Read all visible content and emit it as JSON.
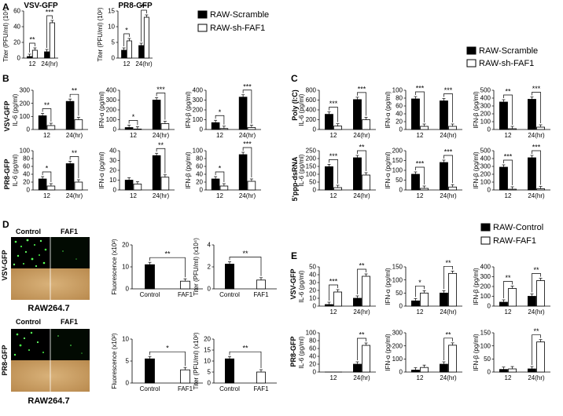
{
  "panel_labels": {
    "A": "A",
    "B": "B",
    "C": "C",
    "D": "D",
    "E": "E"
  },
  "legend1": {
    "filled": "RAW-Scramble",
    "open": "RAW-sh-FAF1"
  },
  "legend2": {
    "filled": "RAW-Control",
    "open": "RAW-FAF1"
  },
  "virus": {
    "vsv": "VSV-GFP",
    "pr8": "PR8-GFP"
  },
  "stim": {
    "polyic": "Poly (I:C)",
    "ppp": "5'ppp-dsRNA"
  },
  "d_images": {
    "control": "Control",
    "faf1": "FAF1",
    "cell_line": "RAW264.7"
  },
  "chart_data": [
    {
      "id": "A1",
      "type": "bar",
      "title": "VSV-GFP",
      "ylabel": "Titer (PFU/ml) (10⁴)",
      "categories": [
        "12",
        "24(hr)"
      ],
      "ylim": [
        0,
        60
      ],
      "yticks": [
        0,
        20,
        40,
        60
      ],
      "series": [
        {
          "name": "RAW-Scramble",
          "values": [
            2,
            8
          ]
        },
        {
          "name": "RAW-sh-FAF1",
          "values": [
            10,
            45
          ]
        }
      ],
      "sig": [
        "**",
        "***"
      ]
    },
    {
      "id": "A2",
      "type": "bar",
      "title": "PR8-GFP",
      "ylabel": "Titer (PFU/ml) (10²)",
      "categories": [
        "12",
        "24(hr)"
      ],
      "ylim": [
        0,
        15
      ],
      "yticks": [
        0,
        5,
        10,
        15
      ],
      "series": [
        {
          "name": "RAW-Scramble",
          "values": [
            2.5,
            4
          ]
        },
        {
          "name": "RAW-sh-FAF1",
          "values": [
            5.5,
            13
          ]
        }
      ],
      "sig": [
        "*",
        "**"
      ]
    },
    {
      "id": "B1",
      "type": "bar",
      "ylabel": "IL-6 (pg/ml)",
      "categories": [
        "12",
        "24(hr)"
      ],
      "ylim": [
        0,
        300
      ],
      "yticks": [
        0,
        100,
        200,
        300
      ],
      "series": [
        {
          "name": "RAW-Scramble",
          "values": [
            105,
            215
          ]
        },
        {
          "name": "RAW-sh-FAF1",
          "values": [
            30,
            75
          ]
        }
      ],
      "sig": [
        "**",
        "**"
      ]
    },
    {
      "id": "B2",
      "type": "bar",
      "ylabel": "IFN-α (pg/ml)",
      "categories": [
        "12",
        "24(hr)"
      ],
      "ylim": [
        0,
        400
      ],
      "yticks": [
        0,
        100,
        200,
        300,
        400
      ],
      "series": [
        {
          "name": "RAW-Scramble",
          "values": [
            20,
            300
          ]
        },
        {
          "name": "RAW-sh-FAF1",
          "values": [
            5,
            60
          ]
        }
      ],
      "sig": [
        "*",
        "***"
      ]
    },
    {
      "id": "B3",
      "type": "bar",
      "ylabel": "IFN-β (pg/ml)",
      "categories": [
        "12",
        "24(hr)"
      ],
      "ylim": [
        0,
        400
      ],
      "yticks": [
        0,
        100,
        200,
        300,
        400
      ],
      "series": [
        {
          "name": "RAW-Scramble",
          "values": [
            70,
            330
          ]
        },
        {
          "name": "RAW-sh-FAF1",
          "values": [
            10,
            20
          ]
        }
      ],
      "sig": [
        "*",
        "***"
      ]
    },
    {
      "id": "B4",
      "type": "bar",
      "ylabel": "IL-6 (pg/ml)",
      "categories": [
        "12",
        "24(hr)"
      ],
      "ylim": [
        0,
        100
      ],
      "yticks": [
        0,
        20,
        40,
        60,
        80,
        100
      ],
      "series": [
        {
          "name": "RAW-Scramble",
          "values": [
            28,
            67
          ]
        },
        {
          "name": "RAW-sh-FAF1",
          "values": [
            10,
            20
          ]
        }
      ],
      "sig": [
        "*",
        "**"
      ]
    },
    {
      "id": "B5",
      "type": "bar",
      "ylabel": "IFN-α (pg/ml)",
      "categories": [
        "12",
        "24(hr)"
      ],
      "ylim": [
        0,
        40
      ],
      "yticks": [
        0,
        10,
        20,
        30,
        40
      ],
      "series": [
        {
          "name": "RAW-Scramble",
          "values": [
            10,
            35
          ]
        },
        {
          "name": "RAW-sh-FAF1",
          "values": [
            6,
            13
          ]
        }
      ],
      "sig": [
        "",
        "**"
      ]
    },
    {
      "id": "B6",
      "type": "bar",
      "ylabel": "IFN-β (pg/ml)",
      "categories": [
        "12",
        "24(hr)"
      ],
      "ylim": [
        0,
        100
      ],
      "yticks": [
        0,
        20,
        40,
        60,
        80,
        100
      ],
      "series": [
        {
          "name": "RAW-Scramble",
          "values": [
            28,
            90
          ]
        },
        {
          "name": "RAW-sh-FAF1",
          "values": [
            10,
            22
          ]
        }
      ],
      "sig": [
        "*",
        "***"
      ]
    },
    {
      "id": "C1",
      "type": "bar",
      "ylabel": "IL-6 (pg/ml)",
      "categories": [
        "12",
        "24(hr)"
      ],
      "ylim": [
        0,
        800
      ],
      "yticks": [
        0,
        200,
        400,
        600,
        800
      ],
      "series": [
        {
          "name": "RAW-Scramble",
          "values": [
            310,
            610
          ]
        },
        {
          "name": "RAW-sh-FAF1",
          "values": [
            70,
            200
          ]
        }
      ],
      "sig": [
        "***",
        "***"
      ]
    },
    {
      "id": "C2",
      "type": "bar",
      "ylabel": "IFN-α (pg/ml)",
      "categories": [
        "12",
        "24(hr)"
      ],
      "ylim": [
        0,
        100
      ],
      "yticks": [
        0,
        20,
        40,
        60,
        80,
        100
      ],
      "series": [
        {
          "name": "RAW-Scramble",
          "values": [
            78,
            73
          ]
        },
        {
          "name": "RAW-sh-FAF1",
          "values": [
            8,
            8
          ]
        }
      ],
      "sig": [
        "***",
        "***"
      ]
    },
    {
      "id": "C3",
      "type": "bar",
      "ylabel": "IFN-β (pg/ml)",
      "categories": [
        "12",
        "24(hr)"
      ],
      "ylim": [
        0,
        500
      ],
      "yticks": [
        0,
        100,
        200,
        300,
        400,
        500
      ],
      "series": [
        {
          "name": "RAW-Scramble",
          "values": [
            350,
            385
          ]
        },
        {
          "name": "RAW-sh-FAF1",
          "values": [
            10,
            30
          ]
        }
      ],
      "sig": [
        "**",
        "***"
      ]
    },
    {
      "id": "C4",
      "type": "bar",
      "ylabel": "IL-6 (pg/ml)",
      "categories": [
        "12",
        "24(hr)"
      ],
      "ylim": [
        0,
        250
      ],
      "yticks": [
        0,
        50,
        100,
        150,
        200,
        250
      ],
      "series": [
        {
          "name": "RAW-Scramble",
          "values": [
            148,
            205
          ]
        },
        {
          "name": "RAW-sh-FAF1",
          "values": [
            15,
            95
          ]
        }
      ],
      "sig": [
        "***",
        "**"
      ]
    },
    {
      "id": "C5",
      "type": "bar",
      "ylabel": "IFN-α (pg/ml)",
      "categories": [
        "12",
        "24(hr)"
      ],
      "ylim": [
        0,
        200
      ],
      "yticks": [
        0,
        50,
        100,
        150,
        200
      ],
      "series": [
        {
          "name": "RAW-Scramble",
          "values": [
            80,
            140
          ]
        },
        {
          "name": "RAW-sh-FAF1",
          "values": [
            8,
            15
          ]
        }
      ],
      "sig": [
        "***",
        "***"
      ]
    },
    {
      "id": "C6",
      "type": "bar",
      "ylabel": "IFN-β (pg/ml)",
      "categories": [
        "12",
        "24(hr)"
      ],
      "ylim": [
        0,
        500
      ],
      "yticks": [
        0,
        100,
        200,
        300,
        400,
        500
      ],
      "series": [
        {
          "name": "RAW-Scramble",
          "values": [
            290,
            410
          ]
        },
        {
          "name": "RAW-sh-FAF1",
          "values": [
            10,
            15
          ]
        }
      ],
      "sig": [
        "***",
        "***"
      ]
    },
    {
      "id": "D1",
      "type": "bar",
      "ylabel": "Fluorescence (x10²)",
      "categories": [
        "Control",
        "FAF1"
      ],
      "ylim": [
        0,
        20
      ],
      "yticks": [
        0,
        10,
        20
      ],
      "series": [
        {
          "name": "Control",
          "values": [
            11,
            3.5
          ]
        }
      ],
      "colors": [
        "#000000",
        "#ffffff"
      ],
      "sig": [
        "**"
      ]
    },
    {
      "id": "D2",
      "type": "bar",
      "ylabel": "Titer (PFU/ml) (x10⁴)",
      "categories": [
        "Control",
        "FAF1"
      ],
      "ylim": [
        0,
        4
      ],
      "yticks": [
        0,
        2,
        4
      ],
      "series": [
        {
          "name": "Control",
          "values": [
            2.25,
            0.8
          ]
        }
      ],
      "colors": [
        "#000000",
        "#ffffff"
      ],
      "sig": [
        "**"
      ]
    },
    {
      "id": "D3",
      "type": "bar",
      "ylabel": "Fluorescence (x10²)",
      "categories": [
        "Control",
        "FAF1"
      ],
      "ylim": [
        0,
        10
      ],
      "yticks": [
        0,
        5,
        10
      ],
      "series": [
        {
          "name": "Control",
          "values": [
            5.5,
            3
          ]
        }
      ],
      "colors": [
        "#000000",
        "#ffffff"
      ],
      "sig": [
        "*"
      ]
    },
    {
      "id": "D4",
      "type": "bar",
      "ylabel": "Titer (PFU/ml) (x10²)",
      "categories": [
        "Control",
        "FAF1"
      ],
      "ylim": [
        0,
        20
      ],
      "yticks": [
        0,
        5,
        10,
        15,
        20
      ],
      "series": [
        {
          "name": "Control",
          "values": [
            11,
            5
          ]
        }
      ],
      "colors": [
        "#000000",
        "#ffffff"
      ],
      "sig": [
        "**"
      ]
    },
    {
      "id": "E1",
      "type": "bar",
      "ylabel": "IL-6 (pg/ml)",
      "categories": [
        "12",
        "24(hr)"
      ],
      "ylim": [
        0,
        50
      ],
      "yticks": [
        0,
        10,
        20,
        30,
        40,
        50
      ],
      "series": [
        {
          "name": "RAW-Control",
          "values": [
            2,
            10
          ]
        },
        {
          "name": "RAW-FAF1",
          "values": [
            18,
            38
          ]
        }
      ],
      "sig": [
        "***",
        "**"
      ]
    },
    {
      "id": "E2",
      "type": "bar",
      "ylabel": "IFN-α (pg/ml)",
      "categories": [
        "12",
        "24(hr)"
      ],
      "ylim": [
        0,
        150
      ],
      "yticks": [
        0,
        50,
        100,
        150
      ],
      "series": [
        {
          "name": "RAW-Control",
          "values": [
            20,
            50
          ]
        },
        {
          "name": "RAW-FAF1",
          "values": [
            50,
            125
          ]
        }
      ],
      "sig": [
        "*",
        "**"
      ]
    },
    {
      "id": "E3",
      "type": "bar",
      "ylabel": "IFN-β (pg/ml)",
      "categories": [
        "12",
        "24(hr)"
      ],
      "ylim": [
        0,
        400
      ],
      "yticks": [
        0,
        100,
        200,
        300,
        400
      ],
      "series": [
        {
          "name": "RAW-Control",
          "values": [
            40,
            100
          ]
        },
        {
          "name": "RAW-FAF1",
          "values": [
            180,
            260
          ]
        }
      ],
      "sig": [
        "**",
        "**"
      ]
    },
    {
      "id": "E4",
      "type": "bar",
      "ylabel": "IL-6 (pg/ml)",
      "categories": [
        "12",
        "24(hr)"
      ],
      "ylim": [
        0,
        100
      ],
      "yticks": [
        0,
        20,
        40,
        60,
        80,
        100
      ],
      "series": [
        {
          "name": "RAW-Control",
          "values": [
            0,
            20
          ]
        },
        {
          "name": "RAW-FAF1",
          "values": [
            0,
            68
          ]
        }
      ],
      "sig": [
        "",
        "**"
      ]
    },
    {
      "id": "E5",
      "type": "bar",
      "ylabel": "IFN-α (pg/ml)",
      "categories": [
        "12",
        "24(hr)"
      ],
      "ylim": [
        0,
        300
      ],
      "yticks": [
        0,
        100,
        200,
        300
      ],
      "series": [
        {
          "name": "RAW-Control",
          "values": [
            15,
            60
          ]
        },
        {
          "name": "RAW-FAF1",
          "values": [
            35,
            205
          ]
        }
      ],
      "sig": [
        "",
        "**"
      ]
    },
    {
      "id": "E6",
      "type": "bar",
      "ylabel": "IFN-β (pg/ml)",
      "categories": [
        "12",
        "24(hr)"
      ],
      "ylim": [
        0,
        150
      ],
      "yticks": [
        0,
        50,
        100,
        150
      ],
      "series": [
        {
          "name": "RAW-Control",
          "values": [
            10,
            12
          ]
        },
        {
          "name": "RAW-FAF1",
          "values": [
            12,
            115
          ]
        }
      ],
      "sig": [
        "",
        "**"
      ]
    }
  ]
}
